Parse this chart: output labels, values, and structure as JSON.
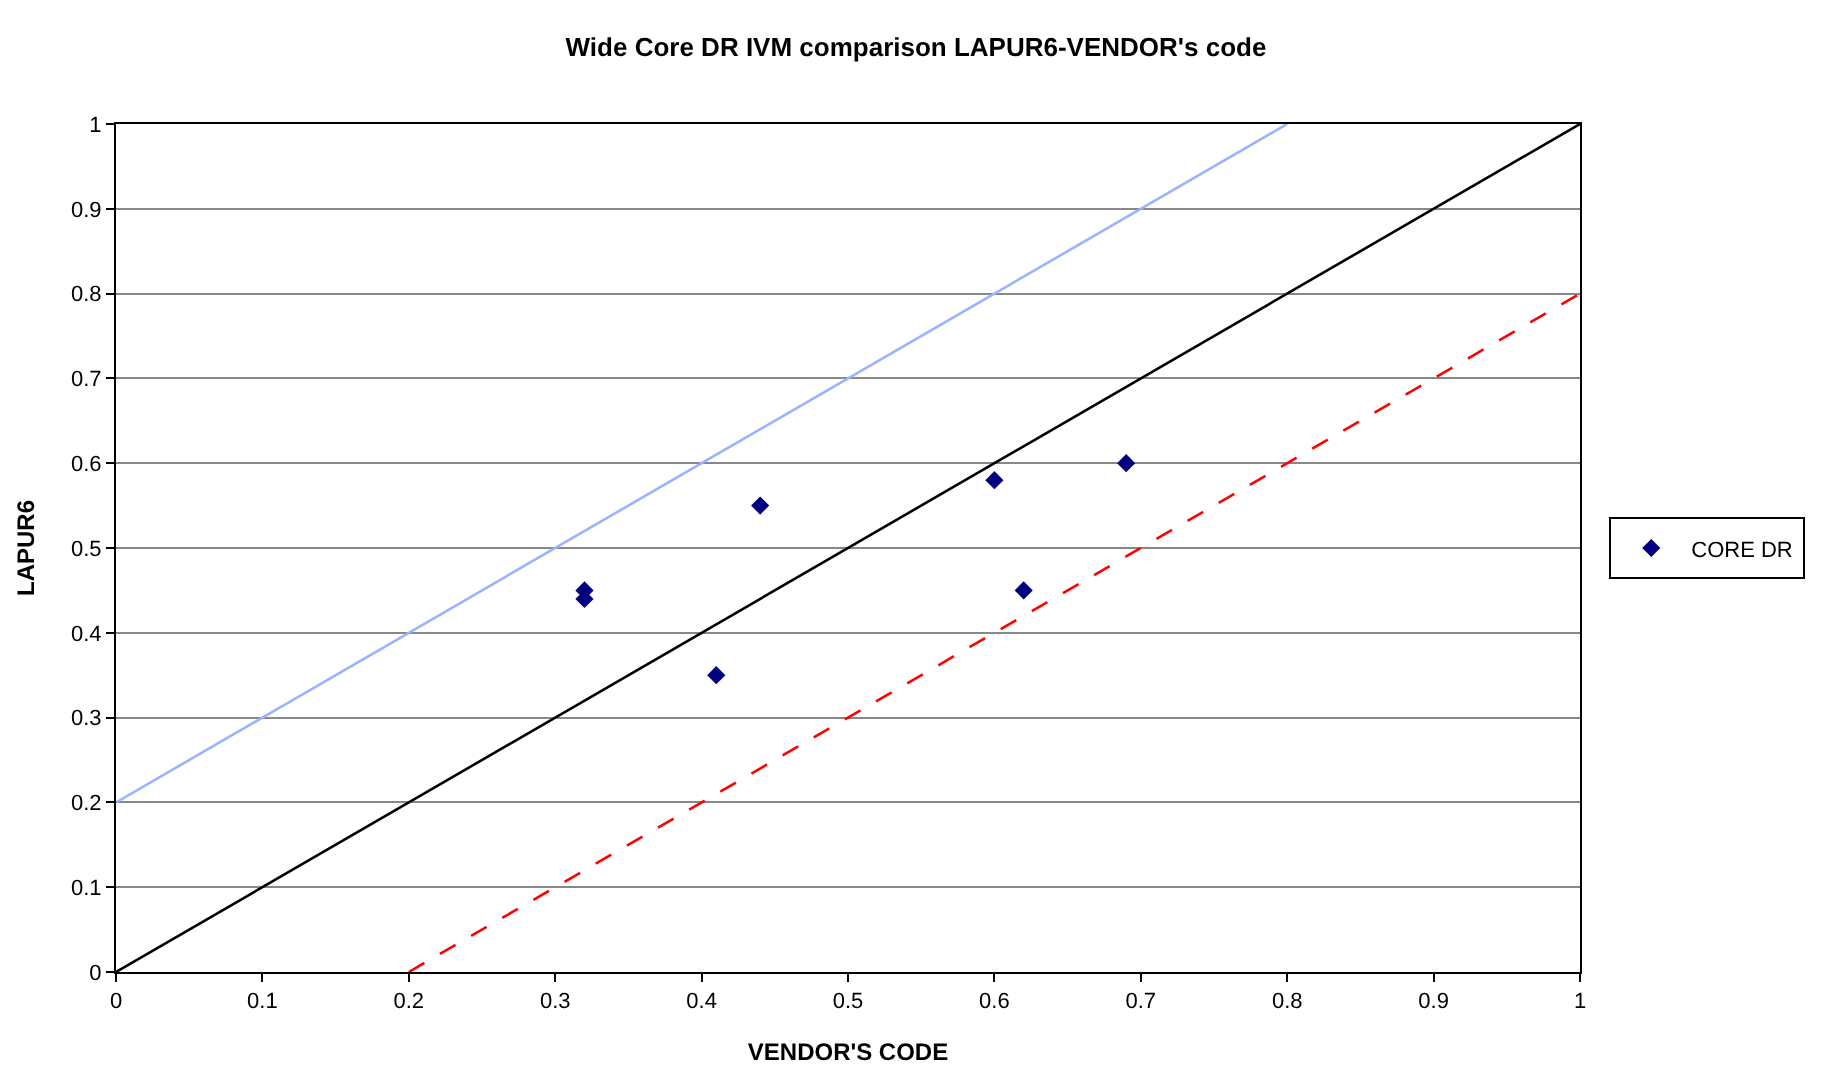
{
  "chart_data": {
    "type": "scatter",
    "title": "Wide Core DR IVM comparison LAPUR6-VENDOR's code",
    "xlabel": "VENDOR'S CODE",
    "ylabel": "LAPUR6",
    "series": [
      {
        "name": "CORE DR",
        "color": "#000080",
        "x": [
          0.32,
          0.32,
          0.41,
          0.44,
          0.6,
          0.62,
          0.69
        ],
        "values": [
          0.45,
          0.44,
          0.35,
          0.55,
          0.58,
          0.45,
          0.6
        ],
        "marker": "diamond"
      },
      {
        "type": "line",
        "color": "#000000",
        "x": [
          0,
          1
        ],
        "values": [
          0,
          1
        ],
        "line_style": "solid"
      },
      {
        "type": "line",
        "color": "#99b3ff",
        "x": [
          0,
          0.8
        ],
        "values": [
          0.2,
          1
        ],
        "line_style": "solid"
      },
      {
        "type": "line",
        "color": "#ff0000",
        "x": [
          0.2,
          1
        ],
        "values": [
          0,
          0.8
        ],
        "line_style": "dashed"
      }
    ],
    "xlim": [
      0,
      1
    ],
    "ylim": [
      0,
      1
    ],
    "xticks": [
      0,
      0.1,
      0.2,
      0.3,
      0.4,
      0.5,
      0.6,
      0.7,
      0.8,
      0.9,
      1
    ],
    "yticks": [
      0,
      0.1,
      0.2,
      0.3,
      0.4,
      0.5,
      0.6,
      0.7,
      0.8,
      0.9,
      1
    ],
    "grid": "y",
    "legend": "right"
  }
}
